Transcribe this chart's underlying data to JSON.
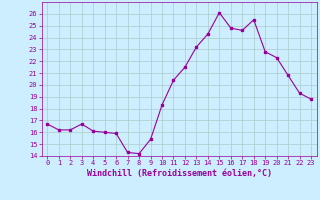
{
  "x": [
    0,
    1,
    2,
    3,
    4,
    5,
    6,
    7,
    8,
    9,
    10,
    11,
    12,
    13,
    14,
    15,
    16,
    17,
    18,
    19,
    20,
    21,
    22,
    23
  ],
  "y": [
    16.7,
    16.2,
    16.2,
    16.7,
    16.1,
    16.0,
    15.9,
    14.3,
    14.2,
    15.4,
    18.3,
    20.4,
    21.5,
    23.2,
    24.3,
    26.1,
    24.8,
    24.6,
    25.5,
    22.8,
    22.3,
    20.8,
    19.3,
    18.8
  ],
  "line_color": "#990099",
  "marker": "s",
  "marker_size": 2,
  "bg_color": "#cceeff",
  "grid_color": "#aacccc",
  "xlabel": "Windchill (Refroidissement éolien,°C)",
  "xlabel_color": "#990099",
  "tick_color": "#990099",
  "ylim": [
    14,
    27
  ],
  "yticks": [
    14,
    15,
    16,
    17,
    18,
    19,
    20,
    21,
    22,
    23,
    24,
    25,
    26
  ],
  "xticks": [
    0,
    1,
    2,
    3,
    4,
    5,
    6,
    7,
    8,
    9,
    10,
    11,
    12,
    13,
    14,
    15,
    16,
    17,
    18,
    19,
    20,
    21,
    22,
    23
  ],
  "xtick_labels": [
    "0",
    "1",
    "2",
    "3",
    "4",
    "5",
    "6",
    "7",
    "8",
    "9",
    "10",
    "11",
    "12",
    "13",
    "14",
    "15",
    "16",
    "17",
    "18",
    "19",
    "20",
    "21",
    "22",
    "23"
  ],
  "font_family": "monospace",
  "tick_fontsize": 5,
  "xlabel_fontsize": 6
}
